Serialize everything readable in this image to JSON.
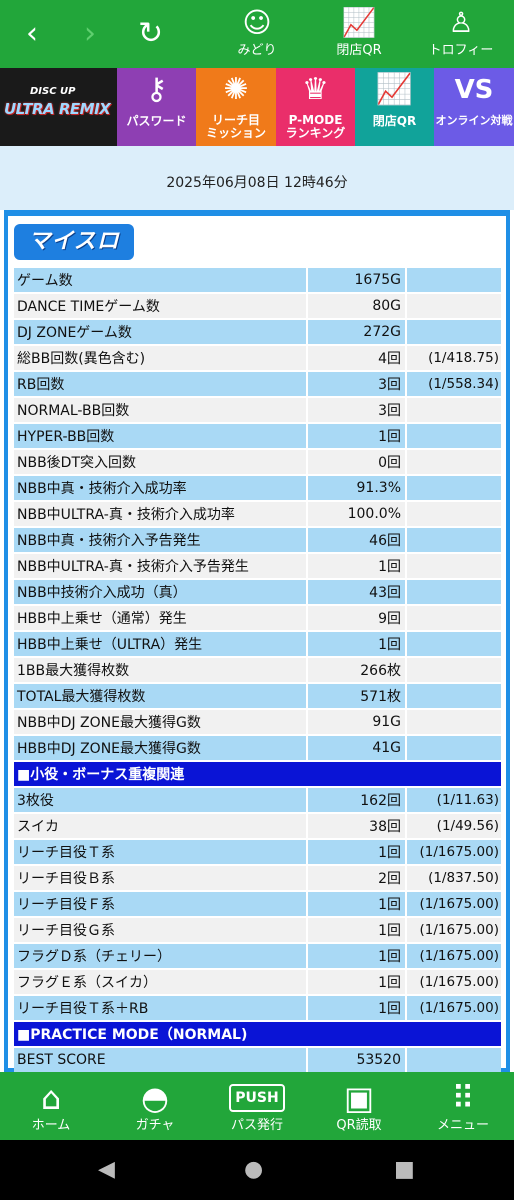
{
  "topbar": {
    "back_icon": "chevron-left-icon",
    "forward_icon": "chevron-right-icon",
    "reload_icon": "reload-icon",
    "items": [
      {
        "label": "みどり",
        "icon": "character-icon"
      },
      {
        "label": "閉店QR",
        "icon": "chart-moon-icon"
      },
      {
        "label": "トロフィー",
        "icon": "trophy-figure-icon"
      }
    ]
  },
  "menu": {
    "logo_line1": "DISC UP",
    "logo_line2": "ULTRA REMIX",
    "items": [
      {
        "label": "パスワード",
        "icon": "key-icon",
        "color": "#8e3fb3"
      },
      {
        "label": "リーチ目\nミッション",
        "icon": "target-badge-icon",
        "color": "#f07a1a"
      },
      {
        "label": "P-MODE\nランキング",
        "icon": "crown-icon",
        "color": "#ea2e6a"
      },
      {
        "label": "閉店QR",
        "icon": "chart-moon-icon",
        "color": "#11a39a"
      },
      {
        "label": "オンライン対戦",
        "icon": "vs-icon",
        "color": "#6c5be6"
      }
    ]
  },
  "date": "2025年06月08日 12時46分",
  "section_title": "マイスロ",
  "stats": [
    {
      "label": "ゲーム数",
      "value": "1675G",
      "rate": ""
    },
    {
      "label": "DANCE TIMEゲーム数",
      "value": "80G",
      "rate": ""
    },
    {
      "label": "DJ ZONEゲーム数",
      "value": "272G",
      "rate": ""
    },
    {
      "label": "総BB回数(異色含む)",
      "value": "4回",
      "rate": "(1/418.75)"
    },
    {
      "label": "RB回数",
      "value": "3回",
      "rate": "(1/558.34)"
    },
    {
      "label": "NORMAL-BB回数",
      "value": "3回",
      "rate": ""
    },
    {
      "label": "HYPER-BB回数",
      "value": "1回",
      "rate": ""
    },
    {
      "label": "NBB後DT突入回数",
      "value": "0回",
      "rate": ""
    },
    {
      "label": "NBB中真・技術介入成功率",
      "value": "91.3%",
      "rate": ""
    },
    {
      "label": "NBB中ULTRA-真・技術介入成功率",
      "value": "100.0%",
      "rate": ""
    },
    {
      "label": "NBB中真・技術介入予告発生",
      "value": "46回",
      "rate": ""
    },
    {
      "label": "NBB中ULTRA-真・技術介入予告発生",
      "value": "1回",
      "rate": ""
    },
    {
      "label": "NBB中技術介入成功（真）",
      "value": "43回",
      "rate": ""
    },
    {
      "label": "HBB中上乗せ（通常）発生",
      "value": "9回",
      "rate": ""
    },
    {
      "label": "HBB中上乗せ（ULTRA）発生",
      "value": "1回",
      "rate": ""
    },
    {
      "label": "1BB最大獲得枚数",
      "value": "266枚",
      "rate": ""
    },
    {
      "label": "TOTAL最大獲得枚数",
      "value": "571枚",
      "rate": ""
    },
    {
      "label": "NBB中DJ ZONE最大獲得G数",
      "value": "91G",
      "rate": ""
    },
    {
      "label": "HBB中DJ ZONE最大獲得G数",
      "value": "41G",
      "rate": ""
    }
  ],
  "section2_title": "■小役・ボーナス重複関連",
  "stats2": [
    {
      "label": "3枚役",
      "value": "162回",
      "rate": "(1/11.63)"
    },
    {
      "label": "スイカ",
      "value": "38回",
      "rate": "(1/49.56)"
    },
    {
      "label": "リーチ目役Ｔ系",
      "value": "1回",
      "rate": "(1/1675.00)"
    },
    {
      "label": "リーチ目役Ｂ系",
      "value": "2回",
      "rate": "(1/837.50)"
    },
    {
      "label": "リーチ目役Ｆ系",
      "value": "1回",
      "rate": "(1/1675.00)"
    },
    {
      "label": "リーチ目役Ｇ系",
      "value": "1回",
      "rate": "(1/1675.00)"
    },
    {
      "label": "フラグＤ系（チェリー）",
      "value": "1回",
      "rate": "(1/1675.00)"
    },
    {
      "label": "フラグＥ系（スイカ）",
      "value": "1回",
      "rate": "(1/1675.00)"
    },
    {
      "label": "リーチ目役Ｔ系＋RB",
      "value": "1回",
      "rate": "(1/1675.00)"
    }
  ],
  "section3_title": "■PRACTICE MODE（NORMAL)",
  "stats3": [
    {
      "label": "BEST SCORE",
      "value": "53520",
      "rate": ""
    }
  ],
  "bottomnav": [
    {
      "label": "ホーム",
      "icon": "home-icon"
    },
    {
      "label": "ガチャ",
      "icon": "gacha-ball-icon"
    },
    {
      "label": "パス発行",
      "icon": "push-button-icon"
    },
    {
      "label": "QR読取",
      "icon": "qr-code-icon"
    },
    {
      "label": "メニュー",
      "icon": "grid-menu-icon"
    }
  ],
  "system": {
    "back": "back-triangle-icon",
    "home": "home-circle-icon",
    "recent": "recent-square-icon"
  }
}
